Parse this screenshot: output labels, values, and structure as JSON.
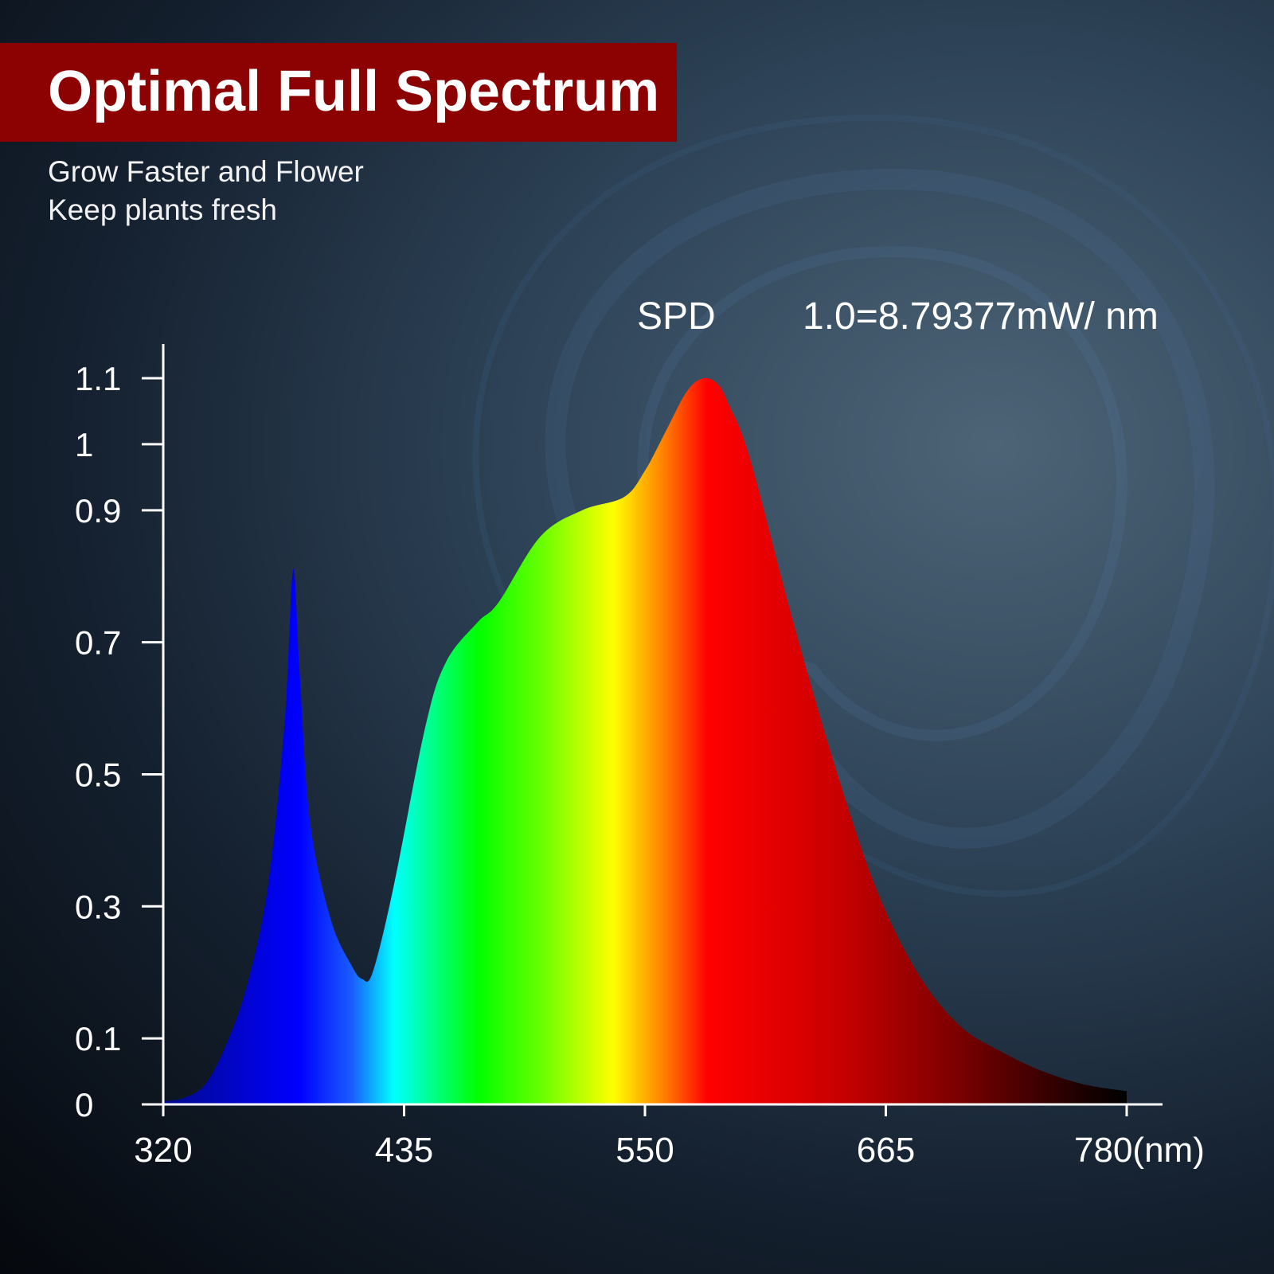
{
  "header": {
    "title": "Optimal Full Spectrum",
    "subtitle_lines": [
      "Grow Faster and Flower",
      "Keep plants fresh"
    ]
  },
  "chart_data": {
    "type": "area",
    "title": "SPD",
    "annotation": "1.0=8.79377mW/ nm",
    "xlabel": "(nm)",
    "ylabel": "",
    "xlim": [
      320,
      780
    ],
    "x_ticks": [
      320,
      435,
      550,
      665,
      780
    ],
    "x_tick_labels": [
      "320",
      "435",
      "550",
      "665",
      "780(nm)"
    ],
    "y_ticks": [
      0,
      0.1,
      0.3,
      0.5,
      0.7,
      0.9,
      1,
      1.1
    ],
    "y_tick_labels": [
      "0",
      "0.1",
      "0.3",
      "0.5",
      "0.7",
      "0.9",
      "1",
      "1.1"
    ],
    "grid": false,
    "series": [
      {
        "name": "SPD",
        "x": [
          320,
          330,
          340,
          350,
          360,
          370,
          378,
          382,
          385,
          390,
          400,
          410,
          415,
          420,
          430,
          445,
          455,
          470,
          480,
          500,
          520,
          540,
          550,
          560,
          570,
          578,
          585,
          590,
          600,
          620,
          640,
          660,
          680,
          700,
          720,
          740,
          760,
          780
        ],
        "values": [
          0.005,
          0.01,
          0.03,
          0.09,
          0.18,
          0.33,
          0.58,
          0.81,
          0.66,
          0.43,
          0.28,
          0.21,
          0.19,
          0.2,
          0.33,
          0.57,
          0.67,
          0.73,
          0.76,
          0.86,
          0.9,
          0.92,
          0.96,
          1.02,
          1.08,
          1.1,
          1.09,
          1.06,
          0.98,
          0.74,
          0.52,
          0.33,
          0.2,
          0.12,
          0.08,
          0.05,
          0.03,
          0.02
        ]
      }
    ]
  },
  "colors": {
    "banner": "#8c0202",
    "axis": "#ffffff",
    "spectrum_stops": [
      {
        "nm": 320,
        "color": "#020a8a"
      },
      {
        "nm": 385,
        "color": "#0000ff"
      },
      {
        "nm": 410,
        "color": "#1a5cff"
      },
      {
        "nm": 430,
        "color": "#00ffff"
      },
      {
        "nm": 470,
        "color": "#00ff00"
      },
      {
        "nm": 500,
        "color": "#66ff00"
      },
      {
        "nm": 535,
        "color": "#ffff00"
      },
      {
        "nm": 560,
        "color": "#ff7a00"
      },
      {
        "nm": 580,
        "color": "#ff0000"
      },
      {
        "nm": 640,
        "color": "#cc0000"
      },
      {
        "nm": 700,
        "color": "#7a0000"
      },
      {
        "nm": 760,
        "color": "#1a0000"
      },
      {
        "nm": 780,
        "color": "#000000"
      }
    ]
  }
}
